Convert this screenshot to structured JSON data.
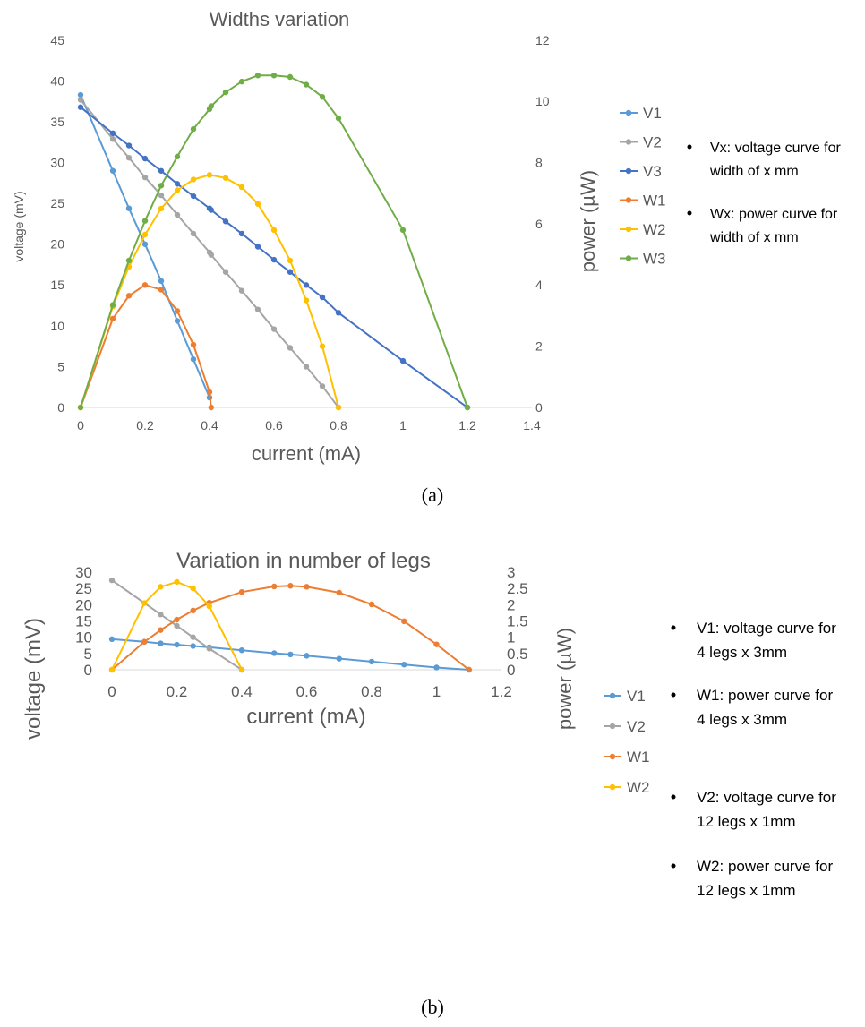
{
  "captions": [
    "(a)",
    "(b)"
  ],
  "chart_data": [
    {
      "type": "line",
      "title": "Widths variation",
      "xlabel": "current (mA)",
      "ylabel": "voltage (mV)",
      "y2label": "power (µW)",
      "xlim": [
        0,
        1.4
      ],
      "ylim": [
        0,
        45
      ],
      "y2lim": [
        0,
        12
      ],
      "xticks": [
        "0",
        "0.2",
        "0.4",
        "0.6",
        "0.8",
        "1",
        "1.2",
        "1.4"
      ],
      "yticks": [
        "0",
        "5",
        "10",
        "15",
        "20",
        "25",
        "30",
        "35",
        "40",
        "45"
      ],
      "y2ticks": [
        "0",
        "2",
        "4",
        "6",
        "8",
        "10",
        "12"
      ],
      "grid": false,
      "legend_position": "right",
      "series": [
        {
          "name": "V1",
          "axis": "left",
          "color": "#5B9BD5",
          "x": [
            0,
            0.1,
            0.15,
            0.2,
            0.25,
            0.3,
            0.35,
            0.4
          ],
          "y": [
            38.3,
            29,
            24.4,
            20,
            15.5,
            10.6,
            5.9,
            1.2
          ]
        },
        {
          "name": "V2",
          "axis": "left",
          "color": "#A5A5A5",
          "x": [
            0,
            0.1,
            0.15,
            0.2,
            0.25,
            0.3,
            0.35,
            0.4,
            0.405,
            0.45,
            0.5,
            0.55,
            0.6,
            0.65,
            0.7,
            0.75,
            0.8
          ],
          "y": [
            37.7,
            32.9,
            30.6,
            28.2,
            26,
            23.6,
            21.3,
            19,
            18.7,
            16.6,
            14.3,
            12,
            9.6,
            7.3,
            5,
            2.6,
            0
          ]
        },
        {
          "name": "V3",
          "axis": "left",
          "color": "#4472C4",
          "x": [
            0,
            0.1,
            0.15,
            0.2,
            0.25,
            0.3,
            0.35,
            0.4,
            0.405,
            0.45,
            0.5,
            0.55,
            0.6,
            0.65,
            0.7,
            0.75,
            0.8,
            1.0,
            1.2
          ],
          "y": [
            36.8,
            33.6,
            32.1,
            30.5,
            29,
            27.4,
            25.9,
            24.4,
            24.2,
            22.8,
            21.3,
            19.7,
            18.1,
            16.6,
            15,
            13.5,
            11.6,
            5.7,
            0
          ]
        },
        {
          "name": "W1",
          "axis": "right",
          "color": "#ED7D31",
          "x": [
            0,
            0.1,
            0.15,
            0.2,
            0.25,
            0.3,
            0.35,
            0.4,
            0.405
          ],
          "y": [
            0,
            2.9,
            3.65,
            4.0,
            3.85,
            3.15,
            2.05,
            0.5,
            0
          ]
        },
        {
          "name": "W2",
          "axis": "right",
          "color": "#FFC000",
          "x": [
            0,
            0.1,
            0.15,
            0.2,
            0.25,
            0.3,
            0.35,
            0.4,
            0.45,
            0.5,
            0.55,
            0.6,
            0.65,
            0.7,
            0.75,
            0.8
          ],
          "y": [
            0,
            3.3,
            4.6,
            5.65,
            6.5,
            7.1,
            7.45,
            7.6,
            7.5,
            7.2,
            6.65,
            5.8,
            4.8,
            3.5,
            2.0,
            0
          ]
        },
        {
          "name": "W3",
          "axis": "right",
          "color": "#70AD47",
          "x": [
            0,
            0.1,
            0.15,
            0.2,
            0.25,
            0.3,
            0.35,
            0.4,
            0.405,
            0.45,
            0.5,
            0.55,
            0.6,
            0.65,
            0.7,
            0.75,
            0.8,
            1.0,
            1.2
          ],
          "y": [
            0,
            3.35,
            4.8,
            6.1,
            7.25,
            8.2,
            9.1,
            9.75,
            9.85,
            10.3,
            10.65,
            10.85,
            10.85,
            10.8,
            10.55,
            10.15,
            9.45,
            5.8,
            0
          ]
        }
      ],
      "notes": [
        "Vx: voltage curve for",
        "width of x mm",
        "Wx: power curve for",
        "width of x mm"
      ]
    },
    {
      "type": "line",
      "title": "Variation in number of legs",
      "xlabel": "current (mA)",
      "ylabel": "voltage (mV)",
      "y2label": "power (µW)",
      "xlim": [
        0,
        1.2
      ],
      "ylim": [
        0,
        30
      ],
      "y2lim": [
        0,
        3
      ],
      "xticks": [
        "0",
        "0.2",
        "0.4",
        "0.6",
        "0.8",
        "1",
        "1.2"
      ],
      "yticks": [
        "0",
        "5",
        "10",
        "15",
        "20",
        "25",
        "30"
      ],
      "y2ticks": [
        "0",
        "0.5",
        "1",
        "1.5",
        "2",
        "2.5",
        "3"
      ],
      "grid": false,
      "legend_position": "right",
      "series": [
        {
          "name": "V1",
          "axis": "left",
          "color": "#5B9BD5",
          "x": [
            0,
            0.1,
            0.15,
            0.2,
            0.25,
            0.3,
            0.4,
            0.5,
            0.55,
            0.6,
            0.7,
            0.8,
            0.9,
            1.0,
            1.1
          ],
          "y": [
            9.4,
            8.6,
            8.1,
            7.7,
            7.3,
            6.9,
            6.0,
            5.1,
            4.7,
            4.3,
            3.4,
            2.5,
            1.6,
            0.7,
            0
          ]
        },
        {
          "name": "V2",
          "axis": "left",
          "color": "#A5A5A5",
          "x": [
            0,
            0.15,
            0.2,
            0.25,
            0.3,
            0.4
          ],
          "y": [
            27.5,
            17,
            13.5,
            10,
            6.5,
            0
          ]
        },
        {
          "name": "W1",
          "axis": "right",
          "color": "#ED7D31",
          "x": [
            0,
            0.1,
            0.15,
            0.2,
            0.25,
            0.3,
            0.4,
            0.5,
            0.55,
            0.6,
            0.7,
            0.8,
            0.9,
            1.0,
            1.1
          ],
          "y": [
            0,
            0.86,
            1.22,
            1.54,
            1.82,
            2.06,
            2.39,
            2.56,
            2.58,
            2.55,
            2.37,
            2.01,
            1.49,
            0.78,
            0
          ]
        },
        {
          "name": "W2",
          "axis": "right",
          "color": "#FFC000",
          "x": [
            0,
            0.1,
            0.15,
            0.2,
            0.25,
            0.3,
            0.4
          ],
          "y": [
            0,
            2.05,
            2.55,
            2.7,
            2.5,
            1.95,
            0
          ]
        }
      ],
      "notes": [
        "V1: voltage curve for",
        "4 legs x 3mm",
        "W1: power curve for",
        "4 legs x 3mm",
        "V2: voltage curve for",
        "12 legs x 1mm",
        "W2: power curve for",
        "12 legs x 1mm"
      ]
    }
  ]
}
